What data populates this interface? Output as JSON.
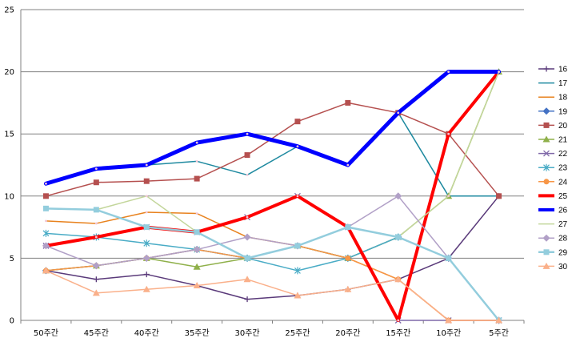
{
  "chart_data": {
    "type": "line",
    "categories": [
      "50주간",
      "45주간",
      "40주간",
      "35주간",
      "30주간",
      "25주간",
      "20주간",
      "15주간",
      "10주간",
      "5주간"
    ],
    "ylim": [
      0,
      25
    ],
    "yticks": [
      0,
      5,
      10,
      15,
      20,
      25
    ],
    "grid": true,
    "legend_position": "right",
    "series": [
      {
        "name": "16",
        "color": "#5a3a7a",
        "marker": "plus",
        "width": 1.5,
        "values": [
          4,
          3.3,
          3.7,
          2.8,
          1.7,
          2,
          2.5,
          3.3,
          5,
          10
        ]
      },
      {
        "name": "17",
        "color": "#1f8aa0",
        "marker": "none",
        "width": 1.5,
        "values": [
          11,
          12.2,
          12.5,
          12.8,
          11.7,
          14,
          12.5,
          16.7,
          10,
          10
        ]
      },
      {
        "name": "18",
        "color": "#e8821e",
        "marker": "none",
        "width": 1.5,
        "values": [
          8,
          7.8,
          8.7,
          8.6,
          6.7,
          6,
          5,
          3.3,
          0,
          0
        ]
      },
      {
        "name": "19",
        "color": "#4472c4",
        "marker": "diamond",
        "width": 1.5,
        "values": [
          4,
          4.4,
          5,
          5.7,
          5,
          6,
          5,
          6.7,
          5,
          0
        ]
      },
      {
        "name": "20",
        "color": "#b5504f",
        "marker": "square",
        "width": 1.5,
        "values": [
          10,
          11.1,
          11.2,
          11.4,
          13.3,
          16,
          17.5,
          16.7,
          15,
          10
        ]
      },
      {
        "name": "21",
        "color": "#8fb04a",
        "marker": "triangle",
        "width": 1.5,
        "values": [
          4,
          4.4,
          5,
          4.3,
          5,
          6,
          5,
          6.7,
          10,
          20
        ]
      },
      {
        "name": "22",
        "color": "#7f68a8",
        "marker": "x",
        "width": 1.5,
        "values": [
          6,
          6.7,
          7.5,
          7.1,
          8.3,
          10,
          7.5,
          0,
          0,
          0
        ]
      },
      {
        "name": "23",
        "color": "#4aacc6",
        "marker": "star",
        "width": 1.5,
        "values": [
          7,
          6.7,
          6.2,
          5.7,
          5,
          4,
          5,
          6.7,
          5,
          0
        ]
      },
      {
        "name": "24",
        "color": "#f79646",
        "marker": "circle",
        "width": 1.5,
        "values": [
          4,
          4.4,
          5,
          5.7,
          5,
          6,
          5,
          3.3,
          0,
          0
        ]
      },
      {
        "name": "25",
        "color": "#ff0000",
        "marker": "none",
        "width": 4,
        "values": [
          6,
          6.7,
          7.5,
          7.1,
          8.3,
          10,
          7.5,
          0,
          15,
          20
        ]
      },
      {
        "name": "26",
        "color": "#0000ff",
        "marker": "none",
        "width": 5,
        "values": [
          11,
          12.2,
          12.5,
          14.3,
          15,
          14,
          12.5,
          16.7,
          20,
          20
        ]
      },
      {
        "name": "27",
        "color": "#c3d69b",
        "marker": "none",
        "width": 1.5,
        "values": [
          9,
          8.9,
          10,
          7.1,
          5,
          6,
          7.5,
          6.7,
          10,
          20
        ]
      },
      {
        "name": "28",
        "color": "#b1a0c7",
        "marker": "diamond",
        "width": 1.5,
        "values": [
          6,
          4.4,
          5,
          5.7,
          6.7,
          6,
          7.5,
          10,
          5,
          0
        ]
      },
      {
        "name": "29",
        "color": "#93cddd",
        "marker": "square",
        "width": 2.5,
        "values": [
          9,
          8.9,
          7.5,
          7.1,
          5,
          6,
          7.5,
          6.7,
          5,
          0
        ]
      },
      {
        "name": "30",
        "color": "#fab08a",
        "marker": "triangle",
        "width": 1.5,
        "values": [
          4,
          2.2,
          2.5,
          2.8,
          3.3,
          2,
          2.5,
          3.3,
          0,
          0
        ]
      }
    ]
  }
}
